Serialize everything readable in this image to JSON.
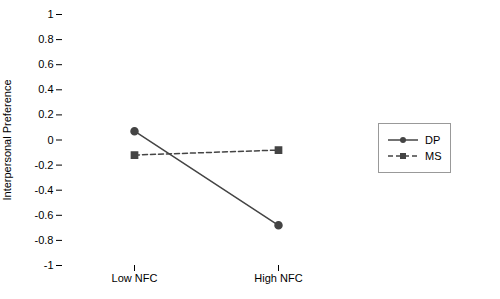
{
  "chart_data": {
    "type": "line",
    "categories": [
      "Low NFC",
      "High NFC"
    ],
    "series": [
      {
        "name": "DP",
        "color": "#444444",
        "values": [
          0.07,
          -0.68
        ],
        "marker": "circle",
        "line_style": "solid"
      },
      {
        "name": "MS",
        "color": "#444444",
        "values": [
          -0.12,
          -0.08
        ],
        "marker": "square",
        "line_style": "dashed"
      }
    ],
    "ylabel": "Interpersonal Preference",
    "ylim": [
      -1,
      1
    ],
    "yticks": [
      -1,
      -0.8,
      -0.6,
      -0.4,
      -0.2,
      0,
      0.2,
      0.4,
      0.6,
      0.8,
      1
    ],
    "grid": false,
    "legend": "right"
  }
}
